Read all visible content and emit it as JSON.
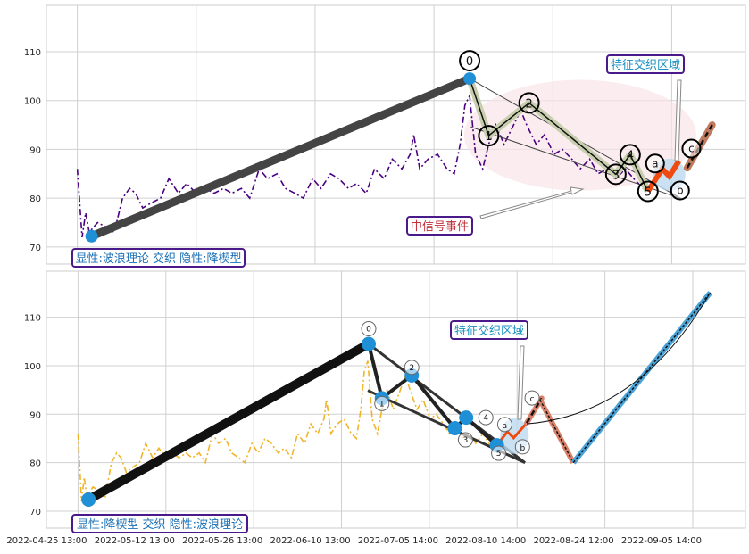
{
  "chart_data": [
    {
      "type": "line",
      "title": "",
      "xlabel": "",
      "ylabel": "",
      "grid": true,
      "xlim": [
        -0.26,
        5.62
      ],
      "ylim": [
        66.5,
        119.5
      ],
      "yticks": [
        70,
        80,
        90,
        100,
        110
      ],
      "price_color": "#4b0082",
      "price_style": "dash-dot",
      "waves": [
        {
          "label": "",
          "x": 0.12,
          "y": 72.2
        },
        {
          "label": "0",
          "x": 3.3,
          "y": 104.5
        },
        {
          "label": "1",
          "x": 3.46,
          "y": 92.8
        },
        {
          "label": "2",
          "x": 3.8,
          "y": 99.5
        },
        {
          "label": "3",
          "x": 4.53,
          "y": 84.9
        },
        {
          "label": "4",
          "x": 4.65,
          "y": 88.9
        },
        {
          "label": "5",
          "x": 4.8,
          "y": 81.4
        }
      ],
      "abc": [
        {
          "label": "a",
          "x": 4.92,
          "y": 86.0
        },
        {
          "label": "b",
          "x": 4.98,
          "y": 84.5
        },
        {
          "label": "c",
          "x": 5.06,
          "y": 87.6
        }
      ],
      "c_extension": [
        {
          "x": 5.13,
          "y": 86.2
        },
        {
          "x": 5.34,
          "y": 95.0
        }
      ],
      "trendlines": [
        [
          {
            "x": 3.3,
            "y": 104.5
          },
          {
            "x": 5.08,
            "y": 79.9
          }
        ],
        [
          {
            "x": 3.31,
            "y": 94.6
          },
          {
            "x": 5.08,
            "y": 79.9
          }
        ]
      ],
      "annotations": {
        "pattern": "显性:波浪理论 交织 隐性:降楔型",
        "zone": "特征交织区域",
        "event": "中信号事件"
      }
    },
    {
      "type": "line",
      "title": "",
      "xlabel": "",
      "ylabel": "",
      "grid": true,
      "xlim": [
        -0.36,
        7.6
      ],
      "ylim": [
        66.5,
        119.5
      ],
      "yticks": [
        70,
        80,
        90,
        100,
        110
      ],
      "xticks": [
        "2022-04-25 13:00",
        "2022-05-12 13:00",
        "2022-05-26 13:00",
        "2022-06-10 13:00",
        "2022-07-05 14:00",
        "2022-08-10 14:00",
        "2022-08-24 12:00",
        "2022-09-05 14:00"
      ],
      "price_color": "#f0b429",
      "price_style": "dash-dot",
      "waves": [
        {
          "label": "",
          "x": 0.12,
          "y": 72.4
        },
        {
          "label": "0",
          "x": 3.31,
          "y": 104.5
        },
        {
          "label": "1",
          "x": 3.46,
          "y": 93.3
        },
        {
          "label": "2",
          "x": 3.8,
          "y": 98.0
        },
        {
          "label": "3",
          "x": 4.29,
          "y": 87.1
        },
        {
          "label": "4",
          "x": 4.42,
          "y": 89.3
        },
        {
          "label": "5",
          "x": 4.77,
          "y": 83.6
        }
      ],
      "abc": [
        {
          "label": "a",
          "x": 4.89,
          "y": 86.4
        },
        {
          "label": "b",
          "x": 4.96,
          "y": 85.1
        },
        {
          "label": "c",
          "x": 5.11,
          "y": 88.2
        }
      ],
      "c_extension": [
        {
          "x": 5.11,
          "y": 88.2
        },
        {
          "x": 5.28,
          "y": 93.3
        }
      ],
      "projection_down": [
        {
          "x": 5.26,
          "y": 93.0
        },
        {
          "x": 5.64,
          "y": 80.0
        }
      ],
      "projection_up": [
        {
          "x": 5.64,
          "y": 80.0
        },
        {
          "x": 7.2,
          "y": 115.1
        }
      ],
      "trendlines": [
        [
          {
            "x": 3.31,
            "y": 104.5
          },
          {
            "x": 5.09,
            "y": 80.0
          }
        ],
        [
          {
            "x": 3.3,
            "y": 94.9
          },
          {
            "x": 5.09,
            "y": 80.0
          }
        ]
      ],
      "annotations": {
        "pattern": "显性:降楔型 交织 隐性:波浪理论",
        "zone": "特征交织区域"
      }
    }
  ],
  "price": {
    "x": [
      0,
      0.04,
      0.07,
      0.1,
      0.17,
      0.25,
      0.31,
      0.38,
      0.44,
      0.49,
      0.55,
      0.62,
      0.7,
      0.77,
      0.85,
      0.92,
      1.0,
      1.08,
      1.15,
      1.23,
      1.3,
      1.38,
      1.45,
      1.53,
      1.6,
      1.68,
      1.75,
      1.83,
      1.9,
      1.98,
      2.05,
      2.13,
      2.2,
      2.28,
      2.35,
      2.43,
      2.5,
      2.58,
      2.65,
      2.73,
      2.8,
      2.83,
      2.88,
      2.95,
      3.03,
      3.11,
      3.17,
      3.22,
      3.26,
      3.3,
      3.35,
      3.41,
      3.46,
      3.52,
      3.59,
      3.67,
      3.73,
      3.78,
      3.86,
      3.93,
      4.01,
      4.08,
      4.16,
      4.23,
      4.31,
      4.38,
      4.46,
      4.53,
      4.61,
      4.68,
      4.76
    ],
    "y": [
      86,
      72,
      77,
      73,
      75,
      74,
      73,
      80,
      82,
      81,
      78,
      79,
      80,
      84,
      81,
      83,
      81,
      82,
      81,
      82,
      81,
      82,
      80,
      86,
      84,
      85,
      82,
      81,
      80,
      84,
      82,
      85,
      84,
      82,
      83,
      81,
      86,
      84,
      88,
      86,
      89,
      93,
      86,
      88,
      89,
      86,
      85,
      91,
      99,
      101,
      89,
      86,
      91,
      95,
      91,
      95,
      98,
      95,
      91,
      93,
      89,
      90,
      88,
      86,
      88,
      85,
      86,
      84,
      86,
      84,
      82
    ]
  }
}
